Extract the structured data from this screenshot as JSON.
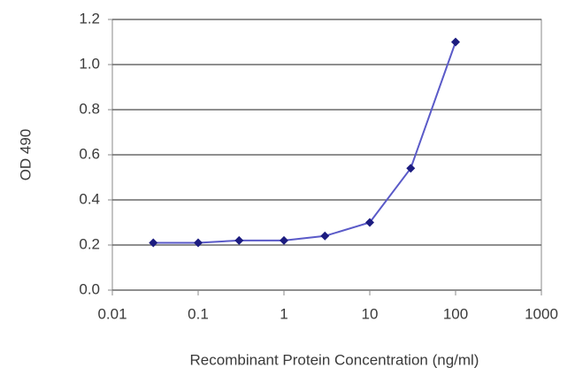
{
  "chart_data": {
    "type": "line",
    "x_label": "Recombinant Protein Concentration (ng/ml)",
    "y_label": "OD 490",
    "x": [
      0.03,
      0.1,
      0.3,
      1,
      3,
      10,
      30,
      100
    ],
    "series": [
      {
        "color": "#5a5ac8",
        "marker_color": "#1c1c80",
        "values": [
          0.21,
          0.21,
          0.22,
          0.22,
          0.24,
          0.3,
          0.54,
          1.1
        ]
      }
    ],
    "xscale": "log",
    "xlim": [
      0.01,
      1000
    ],
    "xticks": [
      0.01,
      0.1,
      1,
      10,
      100,
      1000
    ],
    "ylim": [
      0,
      1.2
    ],
    "yticks": [
      {
        "value": 0,
        "label": "0.0"
      },
      0.2,
      0.4,
      0.6,
      0.8,
      {
        "value": 1,
        "label": "1.0"
      },
      1.2
    ],
    "grid": true
  }
}
